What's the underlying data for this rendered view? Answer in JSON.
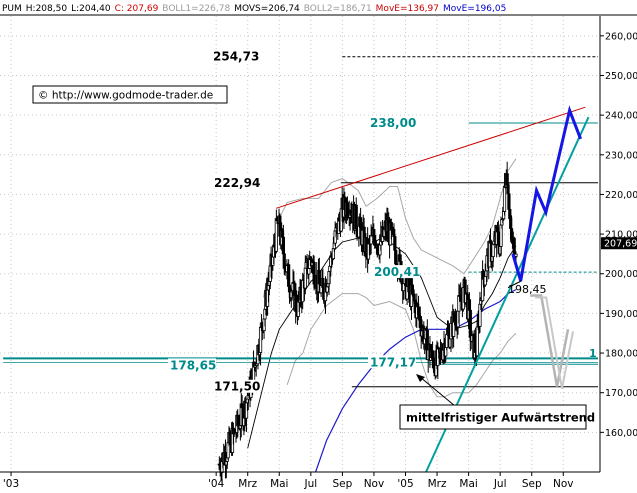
{
  "chart_data": {
    "type": "candlestick",
    "header": [
      {
        "text": "PUM",
        "color": "#000000"
      },
      {
        "text": "H:208,50",
        "color": "#000000"
      },
      {
        "text": "L:204,40",
        "color": "#000000"
      },
      {
        "text": "C: 207,69",
        "color": "#cc0000"
      },
      {
        "text": "BOLL1=226,78",
        "color": "#9a9a9a"
      },
      {
        "text": "MOVS=206,74",
        "color": "#000000"
      },
      {
        "text": "BOLL2=186,71",
        "color": "#9a9a9a"
      },
      {
        "text": "MovE=136,97",
        "color": "#cc0000"
      },
      {
        "text": "MovE=196,05",
        "color": "#0000cc"
      }
    ],
    "copyright": "© http://www.godmode-trader.de",
    "last_price": "207,69",
    "y_range": [
      150,
      265
    ],
    "y_ticks": [
      {
        "value": 160,
        "label": "160,00"
      },
      {
        "value": 170,
        "label": "170,00"
      },
      {
        "value": 180,
        "label": "180,00"
      },
      {
        "value": 190,
        "label": "190,00"
      },
      {
        "value": 200,
        "label": "200,00"
      },
      {
        "value": 210,
        "label": "210,00"
      },
      {
        "value": 220,
        "label": "220,00"
      },
      {
        "value": 230,
        "label": "230,00"
      },
      {
        "value": 240,
        "label": "240,00"
      },
      {
        "value": 250,
        "label": "250,00"
      },
      {
        "value": 260,
        "label": "260,00"
      }
    ],
    "x_ticks": [
      {
        "m": -1,
        "label": "'03"
      },
      {
        "m": 12,
        "label": "'04"
      },
      {
        "m": 14,
        "label": "Mrz"
      },
      {
        "m": 16,
        "label": "Mai"
      },
      {
        "m": 18,
        "label": "Jul"
      },
      {
        "m": 20,
        "label": "Sep"
      },
      {
        "m": 22,
        "label": "Nov"
      },
      {
        "m": 24,
        "label": "'05"
      },
      {
        "m": 26,
        "label": "Mrz"
      },
      {
        "m": 28,
        "label": "Mai"
      },
      {
        "m": 30,
        "label": "Jul"
      },
      {
        "m": 32,
        "label": "Sep"
      },
      {
        "m": 34,
        "label": "Nov"
      }
    ],
    "levels": [
      {
        "value": 254.73,
        "label": "254,73",
        "color": "#000000",
        "style": "dashed",
        "m_start": 20,
        "label_color": "#000000"
      },
      {
        "value": 238.0,
        "label": "238,00",
        "color": "#008b8b",
        "style": "solid",
        "m_start": 28.0,
        "label_color": "#008b8b"
      },
      {
        "value": 222.94,
        "label": "222,94",
        "color": "#000000",
        "style": "solid",
        "m_start": 19.9,
        "label_color": "#000000"
      },
      {
        "value": 200.41,
        "label": "200,41",
        "color": "#008b8b",
        "style": "dashed",
        "m_start": 28.0,
        "label_color": "#008b8b"
      },
      {
        "value": 178.65,
        "label": "178,65",
        "color": "#008b8b",
        "style": "solid-thick",
        "m_start": -1.5,
        "label_color": "#008b8b"
      },
      {
        "value": 177.17,
        "label": "177,17",
        "color": "#008b8b",
        "style": "solid",
        "m_start": 25.5,
        "label_color": "#008b8b"
      },
      {
        "value": 171.5,
        "label": "171,50",
        "color": "#000000",
        "style": "solid",
        "m_start": 20.6,
        "label_color": "#000000"
      }
    ],
    "annotation_198": "198,45",
    "trend_label": "mittelfristiger Aufwärtstrend",
    "edge_label": "1",
    "trend_line": {
      "m1": 25.3,
      "v1": 150,
      "m2": 35.6,
      "v2": 239.5,
      "color": "#00a0a0"
    },
    "resistance_line": {
      "m1": 15.8,
      "v1": 216.5,
      "m2": 35.4,
      "v2": 242,
      "color": "#cc0000"
    },
    "blue_projection": [
      [
        30.8,
        205
      ],
      [
        31.3,
        198.2
      ],
      [
        32.3,
        221
      ],
      [
        32.9,
        215.5
      ],
      [
        34.4,
        241.2
      ],
      [
        35.1,
        234
      ]
    ],
    "gray_projection": [
      [
        31.9,
        194.5
      ],
      [
        32.6,
        194.5
      ],
      [
        33.6,
        171.5
      ],
      [
        34.3,
        186
      ]
    ],
    "sma": [
      [
        14.0,
        156
      ],
      [
        14.5,
        164
      ],
      [
        15.0,
        172
      ],
      [
        15.5,
        180
      ],
      [
        16.0,
        186
      ],
      [
        16.5,
        189
      ],
      [
        17.0,
        192
      ],
      [
        17.5,
        195
      ],
      [
        18.0,
        198
      ],
      [
        18.5,
        200
      ],
      [
        19.0,
        203
      ],
      [
        19.5,
        206
      ],
      [
        20.0,
        208
      ],
      [
        21.0,
        209
      ],
      [
        22.0,
        208
      ],
      [
        22.5,
        209
      ],
      [
        23.0,
        208
      ],
      [
        24.0,
        205
      ],
      [
        25.0,
        199
      ],
      [
        25.5,
        194
      ],
      [
        26.0,
        189
      ],
      [
        27.0,
        186
      ],
      [
        28.0,
        187
      ],
      [
        28.5,
        188
      ],
      [
        29.0,
        192
      ],
      [
        29.5,
        195
      ],
      [
        30.0,
        199
      ],
      [
        30.5,
        204
      ],
      [
        31.0,
        207
      ]
    ],
    "ema_blue": [
      [
        18.3,
        150
      ],
      [
        19.0,
        158
      ],
      [
        20.0,
        166
      ],
      [
        21.0,
        172
      ],
      [
        22.0,
        177
      ],
      [
        23.0,
        181
      ],
      [
        24.0,
        184
      ],
      [
        25.0,
        186
      ],
      [
        26.0,
        186
      ],
      [
        27.0,
        186
      ],
      [
        28.0,
        188
      ],
      [
        29.0,
        191
      ],
      [
        30.0,
        193
      ],
      [
        30.5,
        195
      ],
      [
        31.0,
        196
      ]
    ],
    "boll_upper": [
      [
        15.0,
        194
      ],
      [
        15.5,
        205
      ],
      [
        16.0,
        214
      ],
      [
        16.5,
        218
      ],
      [
        17.5,
        219
      ],
      [
        18.5,
        219
      ],
      [
        19.3,
        223
      ],
      [
        20.0,
        224
      ],
      [
        21.0,
        221
      ],
      [
        21.5,
        217
      ],
      [
        22.2,
        219
      ],
      [
        23.0,
        222
      ],
      [
        23.5,
        222
      ],
      [
        24.0,
        214
      ],
      [
        24.5,
        209
      ],
      [
        25.0,
        206
      ],
      [
        26.0,
        204
      ],
      [
        27.0,
        202
      ],
      [
        27.7,
        200
      ],
      [
        28.2,
        203
      ],
      [
        29.0,
        208
      ],
      [
        29.5,
        212
      ],
      [
        30.0,
        219
      ],
      [
        30.5,
        226
      ],
      [
        31.0,
        229
      ]
    ],
    "boll_lower": [
      [
        16.5,
        172
      ],
      [
        17.0,
        178
      ],
      [
        17.5,
        180
      ],
      [
        18.0,
        186
      ],
      [
        19.0,
        192
      ],
      [
        20.0,
        195
      ],
      [
        21.0,
        195
      ],
      [
        21.5,
        194
      ],
      [
        22.0,
        192
      ],
      [
        23.0,
        193
      ],
      [
        24.0,
        191
      ],
      [
        24.5,
        186
      ],
      [
        25.0,
        178
      ],
      [
        25.5,
        172
      ],
      [
        26.0,
        169
      ],
      [
        26.5,
        169
      ],
      [
        27.0,
        170
      ],
      [
        28.0,
        170
      ],
      [
        28.5,
        172
      ],
      [
        29.0,
        175
      ],
      [
        29.5,
        178
      ],
      [
        30.0,
        180
      ],
      [
        30.5,
        183
      ],
      [
        31.0,
        185
      ]
    ],
    "price_path": [
      [
        12.2,
        152
      ],
      [
        12.6,
        155
      ],
      [
        13.0,
        158
      ],
      [
        13.4,
        162
      ],
      [
        13.8,
        166
      ],
      [
        14.2,
        172
      ],
      [
        14.6,
        180
      ],
      [
        15.0,
        189
      ],
      [
        15.3,
        197
      ],
      [
        15.6,
        204
      ],
      [
        15.9,
        213
      ],
      [
        16.2,
        207
      ],
      [
        16.5,
        200
      ],
      [
        16.8,
        196
      ],
      [
        17.2,
        191
      ],
      [
        17.6,
        199
      ],
      [
        18.0,
        204
      ],
      [
        18.4,
        198
      ],
      [
        18.8,
        195
      ],
      [
        19.2,
        202
      ],
      [
        19.6,
        210
      ],
      [
        20.0,
        216
      ],
      [
        20.4,
        218
      ],
      [
        20.8,
        214
      ],
      [
        21.2,
        210
      ],
      [
        21.6,
        205
      ],
      [
        22.0,
        210
      ],
      [
        22.4,
        207
      ],
      [
        22.8,
        212
      ],
      [
        23.2,
        208
      ],
      [
        23.6,
        202
      ],
      [
        24.0,
        197
      ],
      [
        24.4,
        194
      ],
      [
        24.8,
        190
      ],
      [
        25.2,
        184
      ],
      [
        25.6,
        179
      ],
      [
        26.0,
        177
      ],
      [
        26.4,
        182
      ],
      [
        26.8,
        185
      ],
      [
        27.2,
        189
      ],
      [
        27.5,
        193
      ],
      [
        27.8,
        196
      ],
      [
        28.0,
        190
      ],
      [
        28.2,
        182
      ],
      [
        28.5,
        181
      ],
      [
        28.8,
        196
      ],
      [
        29.0,
        200
      ],
      [
        29.2,
        204
      ],
      [
        29.5,
        206
      ],
      [
        29.8,
        209
      ],
      [
        30.0,
        207
      ],
      [
        30.2,
        218
      ],
      [
        30.4,
        228
      ],
      [
        30.6,
        212
      ],
      [
        30.8,
        207
      ],
      [
        31.0,
        207.69
      ]
    ]
  }
}
